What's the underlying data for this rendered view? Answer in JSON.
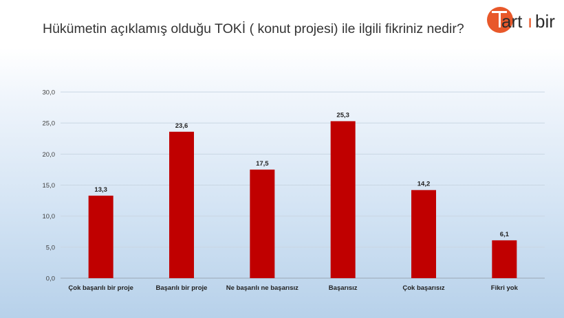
{
  "page": {
    "title": "Hükümetin açıklamış olduğu TOKİ ( konut projesi) ile ilgili fikriniz nedir?"
  },
  "logo": {
    "text_a": "art",
    "text_b": "ı",
    "text_c": "bir",
    "colors": {
      "orange": "#e8582a",
      "dark": "#2b2b2b"
    }
  },
  "chart_data": {
    "type": "bar",
    "title": "",
    "xlabel": "",
    "ylabel": "",
    "categories": [
      "Çok başarılı bir proje",
      "Başarılı bir proje",
      "Ne başarılı ne başarısız",
      "Başarısız",
      "Çok başarısız",
      "Fikri yok"
    ],
    "values": [
      13.3,
      23.6,
      17.5,
      25.3,
      14.2,
      6.1
    ],
    "value_labels": [
      "13,3",
      "23,6",
      "17,5",
      "25,3",
      "14,2",
      "6,1"
    ],
    "yticks": [
      "0,0",
      "5,0",
      "10,0",
      "15,0",
      "20,0",
      "25,0",
      "30,0"
    ],
    "ylim": [
      0,
      30
    ],
    "grid": true,
    "legend": "none",
    "bar_color": "#c00000"
  }
}
